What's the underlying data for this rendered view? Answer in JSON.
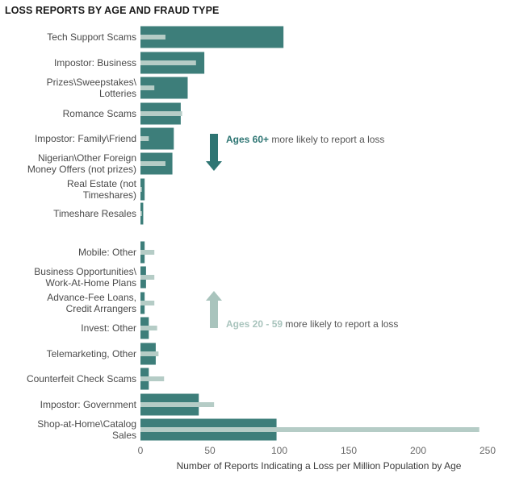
{
  "chart_data": {
    "type": "bar",
    "title": "LOSS REPORTS BY AGE AND FRAUD TYPE",
    "xlabel": "Number of Reports Indicating a Loss per Million Population by Age",
    "ylabel": "",
    "xlim": [
      0,
      250
    ],
    "xticks": [
      0,
      50,
      100,
      150,
      200,
      250
    ],
    "orientation": "horizontal",
    "categories": [
      [
        "Tech Support Scams"
      ],
      [
        "Impostor: Business"
      ],
      [
        "Prizes\\Sweepstakes\\",
        "Lotteries"
      ],
      [
        "Romance Scams"
      ],
      [
        "Impostor: Family\\Friend"
      ],
      [
        "Nigerian\\Other Foreign",
        "Money Offers (not prizes)"
      ],
      [
        "Real Estate (not",
        "Timeshares)"
      ],
      [
        "Timeshare Resales"
      ],
      [
        "Mobile: Other"
      ],
      [
        "Business Opportunities\\",
        "Work-At-Home Plans"
      ],
      [
        "Advance-Fee Loans,",
        "Credit Arrangers"
      ],
      [
        "Invest: Other"
      ],
      [
        "Telemarketing, Other"
      ],
      [
        "Counterfeit Check Scams"
      ],
      [
        "Impostor: Government"
      ],
      [
        "Shop-at-Home\\Catalog",
        "Sales"
      ]
    ],
    "series": [
      {
        "values": [
          103,
          46,
          34,
          29,
          24,
          23,
          3,
          2,
          3,
          4,
          3,
          6,
          11,
          6,
          42,
          98
        ],
        "color": "#3d7e7a"
      },
      {
        "values": [
          18,
          40,
          10,
          30,
          6,
          18,
          1,
          1,
          10,
          10,
          10,
          12,
          13,
          17,
          53,
          244
        ],
        "color": "#b5ccc6"
      }
    ],
    "grid": false,
    "legend": "none",
    "annotations": [
      {
        "strong": "Ages 60+",
        "text": " more likely to report a loss",
        "color": "#2e7573",
        "arrow": "down"
      },
      {
        "strong": "Ages 20 - 59",
        "text": " more likely to report a loss",
        "color": "#a9c4bd",
        "arrow": "up"
      }
    ]
  }
}
